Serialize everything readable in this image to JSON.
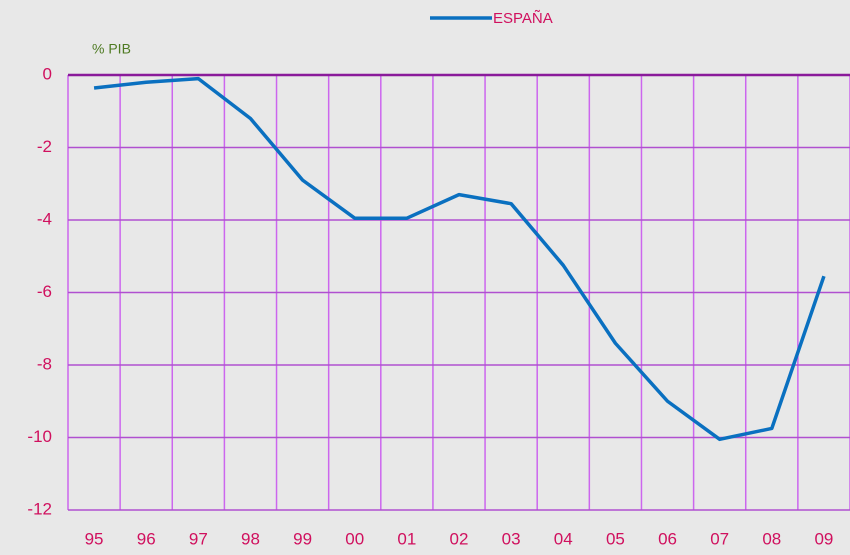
{
  "chart_data": {
    "type": "line",
    "y_label": "% PIB",
    "categories": [
      "95",
      "96",
      "97",
      "98",
      "99",
      "00",
      "01",
      "02",
      "03",
      "04",
      "05",
      "06",
      "07",
      "08",
      "09"
    ],
    "series": [
      {
        "name": "ESPAÑA",
        "color": "#0a70c0",
        "values": [
          -0.36,
          -0.2,
          -0.1,
          -1.2,
          -2.9,
          -3.95,
          -3.95,
          -3.3,
          -3.55,
          -5.25,
          -7.4,
          -9.0,
          -10.05,
          -9.75,
          -5.55
        ]
      }
    ],
    "ylim": [
      -12,
      0
    ],
    "yticks": [
      0,
      -2,
      -4,
      -6,
      -8,
      -10,
      -12
    ],
    "grid": true,
    "legend": "top"
  }
}
